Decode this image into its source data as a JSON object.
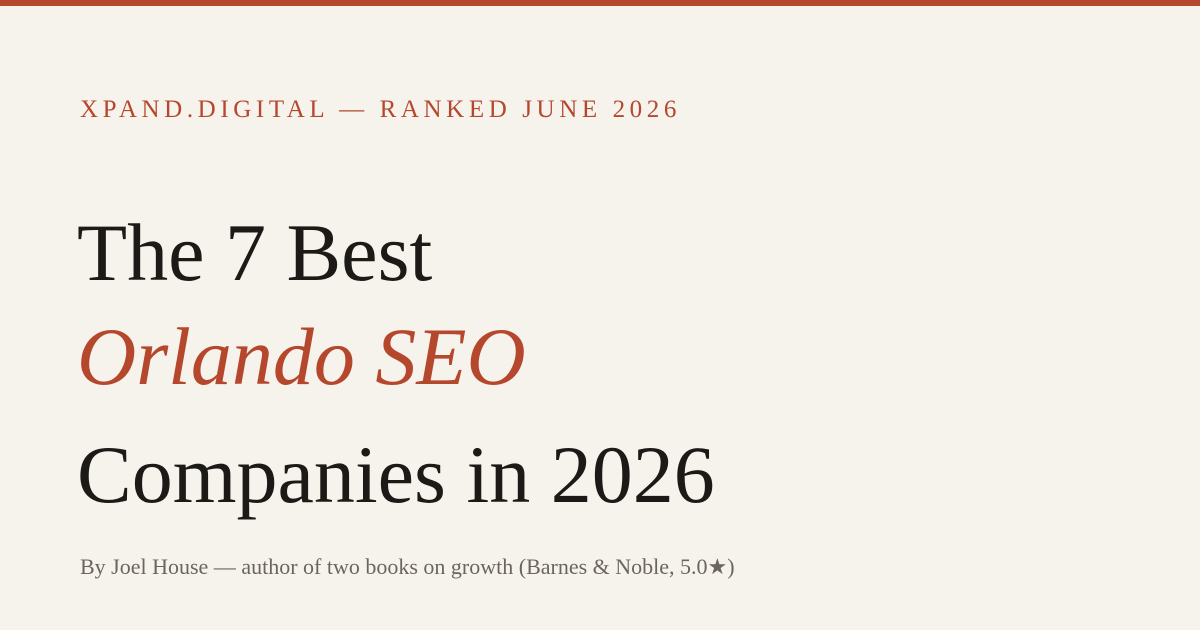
{
  "header": {
    "eyebrow": "XPAND.DIGITAL — RANKED JUNE 2026"
  },
  "title": {
    "line1": "The 7 Best",
    "line2": "Orlando SEO",
    "line3": "Companies in 2026"
  },
  "byline": "By Joel House — author of two books on growth (Barnes & Noble, 5.0★)"
}
